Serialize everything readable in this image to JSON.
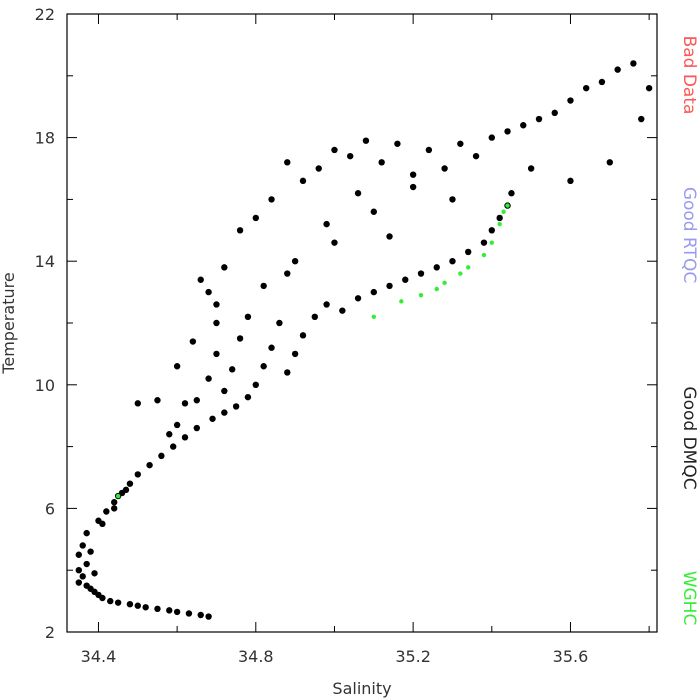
{
  "chart_data": {
    "type": "scatter",
    "title": "",
    "xlabel": "Salinity",
    "ylabel": "Temperature",
    "xlim": [
      34.32,
      35.82
    ],
    "ylim": [
      2,
      22
    ],
    "xticks": [
      34.4,
      34.8,
      35.2,
      35.6
    ],
    "yticks": [
      2,
      6,
      10,
      14,
      18,
      22
    ],
    "xtick_labels": [
      "34.4",
      "34.8",
      "35.2",
      "35.6"
    ],
    "ytick_labels": [
      "2",
      "6",
      "10",
      "14",
      "18",
      "22"
    ],
    "grid": false,
    "legend_position": "right, vertical",
    "legend": [
      {
        "label": "Bad Data",
        "color": "#ff5555"
      },
      {
        "label": "Good RTQC",
        "color": "#9999ee"
      },
      {
        "label": "Good DMQC",
        "color": "#222222"
      },
      {
        "label": "WGHC",
        "color": "#33ee33"
      }
    ],
    "series": [
      {
        "name": "Good DMQC",
        "color": "#000000",
        "points": [
          [
            34.35,
            3.6
          ],
          [
            34.35,
            4.0
          ],
          [
            34.35,
            4.5
          ],
          [
            34.36,
            3.8
          ],
          [
            34.36,
            4.8
          ],
          [
            34.37,
            3.5
          ],
          [
            34.37,
            4.2
          ],
          [
            34.37,
            5.2
          ],
          [
            34.38,
            3.4
          ],
          [
            34.38,
            4.6
          ],
          [
            34.39,
            3.3
          ],
          [
            34.39,
            3.9
          ],
          [
            34.4,
            3.2
          ],
          [
            34.4,
            5.6
          ],
          [
            34.41,
            3.1
          ],
          [
            34.42,
            5.9
          ],
          [
            34.43,
            3.0
          ],
          [
            34.44,
            6.2
          ],
          [
            34.45,
            2.95
          ],
          [
            34.46,
            6.5
          ],
          [
            34.48,
            2.9
          ],
          [
            34.48,
            6.8
          ],
          [
            34.5,
            2.85
          ],
          [
            34.5,
            7.1
          ],
          [
            34.52,
            2.8
          ],
          [
            34.53,
            7.4
          ],
          [
            34.55,
            2.75
          ],
          [
            34.56,
            7.7
          ],
          [
            34.58,
            2.7
          ],
          [
            34.59,
            8.0
          ],
          [
            34.6,
            2.65
          ],
          [
            34.62,
            8.3
          ],
          [
            34.63,
            2.6
          ],
          [
            34.65,
            8.6
          ],
          [
            34.66,
            2.55
          ],
          [
            34.68,
            2.5
          ],
          [
            34.69,
            8.9
          ],
          [
            34.72,
            9.1
          ],
          [
            34.75,
            9.3
          ],
          [
            34.78,
            9.6
          ],
          [
            34.62,
            9.4
          ],
          [
            34.65,
            9.5
          ],
          [
            34.68,
            10.2
          ],
          [
            34.7,
            11.0
          ],
          [
            34.72,
            9.8
          ],
          [
            34.74,
            10.5
          ],
          [
            34.76,
            11.5
          ],
          [
            34.78,
            12.2
          ],
          [
            34.8,
            10.0
          ],
          [
            34.82,
            10.6
          ],
          [
            34.84,
            11.2
          ],
          [
            34.86,
            12.0
          ],
          [
            34.88,
            10.4
          ],
          [
            34.9,
            11.0
          ],
          [
            34.92,
            11.6
          ],
          [
            34.95,
            12.2
          ],
          [
            34.98,
            12.6
          ],
          [
            35.02,
            12.4
          ],
          [
            35.06,
            12.8
          ],
          [
            35.1,
            13.0
          ],
          [
            35.14,
            13.2
          ],
          [
            35.18,
            13.4
          ],
          [
            35.22,
            13.6
          ],
          [
            35.26,
            13.8
          ],
          [
            35.3,
            14.0
          ],
          [
            35.34,
            14.3
          ],
          [
            35.38,
            14.6
          ],
          [
            35.4,
            15.0
          ],
          [
            35.42,
            15.4
          ],
          [
            35.44,
            15.8
          ],
          [
            35.45,
            16.2
          ],
          [
            34.66,
            13.4
          ],
          [
            34.68,
            13.0
          ],
          [
            34.7,
            12.6
          ],
          [
            34.72,
            13.8
          ],
          [
            34.76,
            15.0
          ],
          [
            34.8,
            15.4
          ],
          [
            34.84,
            16.0
          ],
          [
            34.88,
            17.2
          ],
          [
            34.92,
            16.6
          ],
          [
            34.96,
            17.0
          ],
          [
            35.0,
            17.6
          ],
          [
            35.04,
            17.4
          ],
          [
            35.08,
            17.9
          ],
          [
            35.12,
            17.2
          ],
          [
            35.16,
            17.8
          ],
          [
            35.2,
            16.8
          ],
          [
            35.24,
            17.6
          ],
          [
            35.28,
            17.0
          ],
          [
            35.32,
            17.8
          ],
          [
            35.36,
            17.4
          ],
          [
            35.4,
            18.0
          ],
          [
            35.44,
            18.2
          ],
          [
            35.48,
            18.4
          ],
          [
            35.52,
            18.6
          ],
          [
            35.56,
            18.8
          ],
          [
            35.6,
            19.2
          ],
          [
            35.64,
            19.6
          ],
          [
            35.68,
            19.8
          ],
          [
            35.72,
            20.2
          ],
          [
            35.76,
            20.4
          ],
          [
            35.8,
            19.6
          ],
          [
            35.78,
            18.6
          ],
          [
            34.6,
            10.6
          ],
          [
            34.64,
            11.4
          ],
          [
            34.7,
            12.0
          ],
          [
            34.82,
            13.2
          ],
          [
            34.9,
            14.0
          ],
          [
            35.0,
            14.6
          ],
          [
            35.1,
            15.6
          ],
          [
            35.2,
            16.4
          ],
          [
            35.3,
            16.0
          ],
          [
            35.5,
            17.0
          ],
          [
            35.6,
            16.6
          ],
          [
            35.7,
            17.2
          ],
          [
            34.88,
            13.6
          ],
          [
            34.98,
            15.2
          ],
          [
            35.06,
            16.2
          ],
          [
            35.14,
            14.8
          ],
          [
            34.5,
            9.4
          ],
          [
            34.55,
            9.5
          ],
          [
            34.45,
            6.4
          ],
          [
            34.47,
            6.6
          ],
          [
            34.58,
            8.4
          ],
          [
            34.6,
            8.7
          ],
          [
            34.44,
            6.0
          ],
          [
            34.41,
            5.5
          ]
        ]
      },
      {
        "name": "WGHC",
        "color": "#33ee33",
        "points": [
          [
            35.1,
            12.2
          ],
          [
            35.17,
            12.7
          ],
          [
            35.22,
            12.9
          ],
          [
            35.26,
            13.1
          ],
          [
            35.28,
            13.3
          ],
          [
            35.32,
            13.6
          ],
          [
            35.34,
            13.8
          ],
          [
            35.38,
            14.2
          ],
          [
            35.4,
            14.6
          ],
          [
            35.42,
            15.2
          ],
          [
            35.43,
            15.6
          ],
          [
            35.44,
            15.8
          ],
          [
            34.45,
            6.4
          ]
        ]
      }
    ]
  }
}
